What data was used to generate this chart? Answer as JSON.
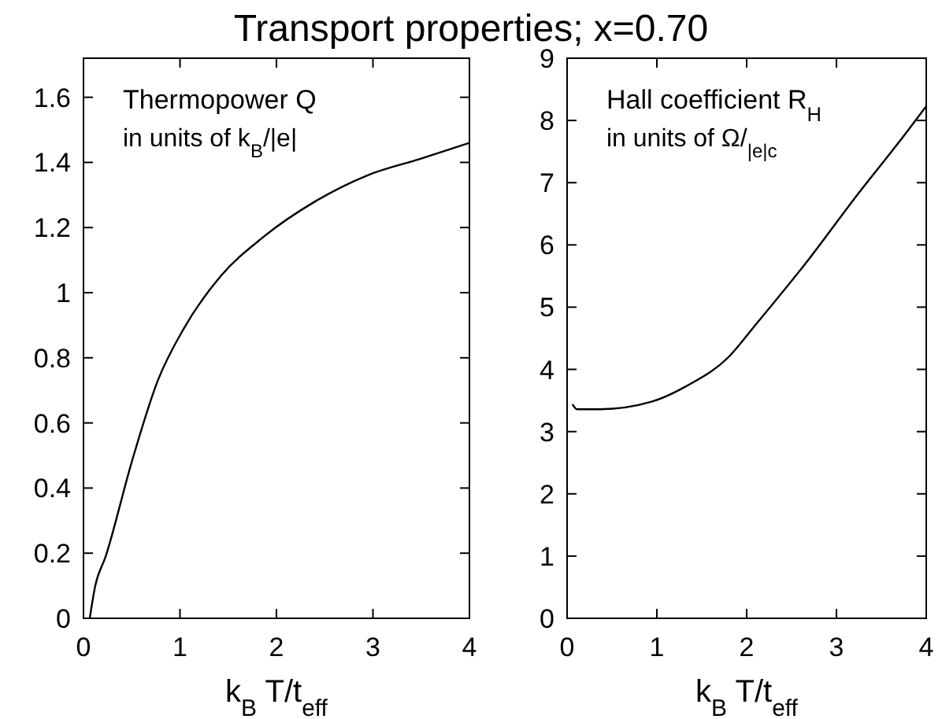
{
  "chart_data": [
    {
      "type": "line",
      "title": "Transport properties; x=0.70",
      "xlabel": "k$_{B}$ T/t$_{eff}$",
      "annotations": [
        "Thermopower Q",
        "in units of k$_{B}$/|e|"
      ],
      "xlim": [
        0,
        4
      ],
      "xticks": [
        0,
        1,
        2,
        3,
        4
      ],
      "ylim": [
        0,
        1.72
      ],
      "yticks": [
        0,
        0.2,
        0.4,
        0.6,
        0.8,
        1,
        1.2,
        1.4,
        1.6
      ],
      "grid": false,
      "series": [
        {
          "color": "#000000",
          "x": [
            0.065,
            0.12,
            0.23,
            0.5,
            0.77,
            1.04,
            1.42,
            1.86,
            2.4,
            2.94,
            3.48,
            4
          ],
          "values": [
            0,
            0.097,
            0.19,
            0.48,
            0.73,
            0.89,
            1.05,
            1.17,
            1.28,
            1.36,
            1.41,
            1.46
          ]
        }
      ]
    },
    {
      "type": "line",
      "xlabel": "k$_{B}$ T/t$_{eff}$",
      "annotations": [
        "Hall coefficient R$_{H}$",
        "in units of Ω/$_{|e|c}$"
      ],
      "xlim": [
        0,
        4
      ],
      "xticks": [
        0,
        1,
        2,
        3,
        4
      ],
      "ylim": [
        0,
        9
      ],
      "yticks": [
        0,
        1,
        2,
        3,
        4,
        5,
        6,
        7,
        8,
        9
      ],
      "grid": false,
      "series": [
        {
          "color": "#000000",
          "x": [
            0.06,
            0.11,
            0.37,
            0.94,
            1.34,
            1.8,
            2.09,
            2.66,
            3.23,
            3.69,
            4
          ],
          "values": [
            3.44,
            3.36,
            3.36,
            3.48,
            3.74,
            4.2,
            4.7,
            5.71,
            6.8,
            7.64,
            8.23
          ]
        }
      ]
    }
  ]
}
